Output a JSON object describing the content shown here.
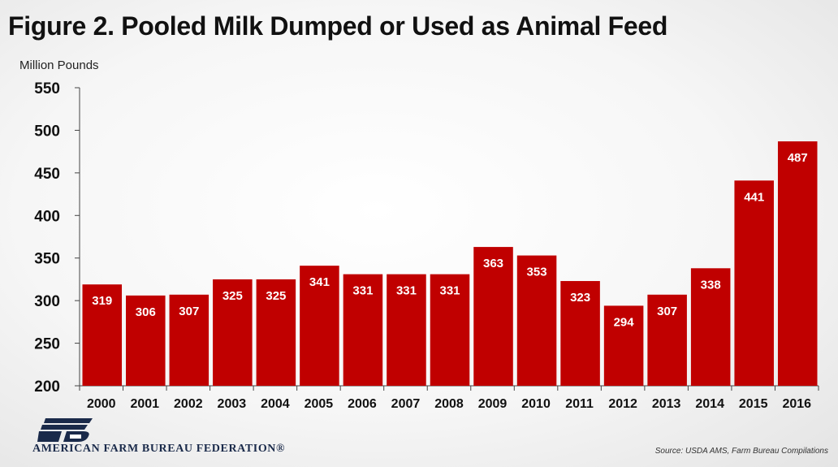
{
  "title": "Figure 2. Pooled Milk Dumped or Used as Animal Feed",
  "chart_data": {
    "type": "bar",
    "title": "Figure 2. Pooled Milk Dumped or Used as Animal Feed",
    "xlabel": "",
    "ylabel": "Million Pounds",
    "categories": [
      "2000",
      "2001",
      "2002",
      "2003",
      "2004",
      "2005",
      "2006",
      "2007",
      "2008",
      "2009",
      "2010",
      "2011",
      "2012",
      "2013",
      "2014",
      "2015",
      "2016"
    ],
    "values": [
      319,
      306,
      307,
      325,
      325,
      341,
      331,
      331,
      331,
      363,
      353,
      323,
      294,
      307,
      338,
      441,
      487
    ],
    "ylim": [
      200,
      550
    ],
    "yticks": [
      200,
      250,
      300,
      350,
      400,
      450,
      500,
      550
    ],
    "grid": false,
    "bar_color": "#c00000",
    "data_labels": true
  },
  "footer": {
    "organization": "AMERICAN FARM BUREAU FEDERATION®",
    "source": "Source: USDA AMS, Farm Bureau Compilations"
  },
  "logo_text": "FB",
  "colors": {
    "bar": "#c00000",
    "logo": "#1a2a4a"
  }
}
